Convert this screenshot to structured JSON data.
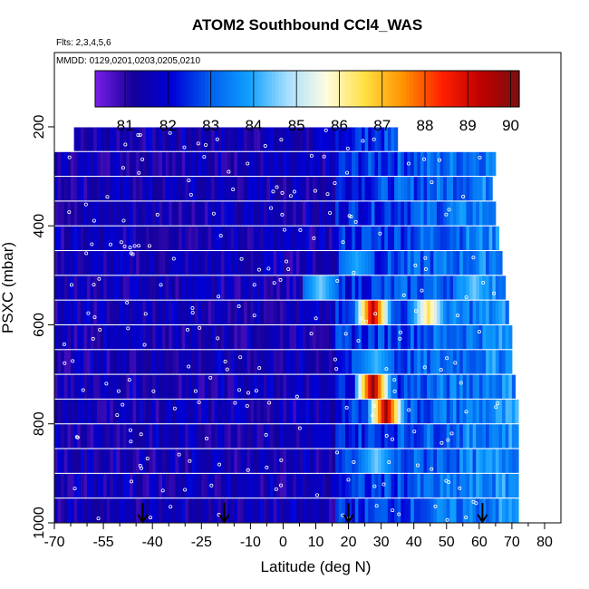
{
  "chart_data": {
    "type": "heatmap",
    "title": "ATOM2 Southbound CCl4_WAS",
    "subtitle_flights": "Flts: 2,3,4,5,6",
    "subtitle_dates": "MMDD: 0129,0201,0203,0205,0210",
    "xlabel": "Latitude (deg N)",
    "ylabel": "PSXC (mbar)",
    "xlim": [
      -70,
      85
    ],
    "ylim": [
      1000,
      50
    ],
    "x_ticks": [
      -70,
      -55,
      -40,
      -25,
      -10,
      0,
      10,
      20,
      30,
      40,
      50,
      60,
      70,
      80
    ],
    "x_minor_ticks": [
      -65,
      -60,
      -50,
      -45,
      -35,
      -30,
      -20,
      -15,
      -5,
      5,
      15,
      25,
      35,
      45,
      55,
      65,
      75
    ],
    "y_ticks": [
      200,
      400,
      600,
      800,
      1000
    ],
    "colorbar": {
      "ticks": [
        81,
        82,
        83,
        84,
        85,
        86,
        87,
        88,
        89,
        90
      ],
      "range": [
        80.3,
        90.2
      ],
      "colors": [
        "#7a1ee8",
        "#14009a",
        "#0000d8",
        "#0060f0",
        "#10a0ff",
        "#a8e0ff",
        "#fffce0",
        "#ffe040",
        "#ff9000",
        "#ff2000",
        "#c00000",
        "#7a1010"
      ]
    },
    "pressure_bins": [
      225,
      275,
      325,
      375,
      425,
      475,
      525,
      575,
      625,
      675,
      725,
      775,
      825,
      875,
      925,
      975
    ],
    "bin_lat_ranges": [
      [
        -64,
        35
      ],
      [
        -70,
        65
      ],
      [
        -70,
        64
      ],
      [
        -70,
        65
      ],
      [
        -70,
        66
      ],
      [
        -70,
        67
      ],
      [
        -70,
        68
      ],
      [
        -70,
        69
      ],
      [
        -70,
        70
      ],
      [
        -70,
        70
      ],
      [
        -70,
        71
      ],
      [
        -70,
        72
      ],
      [
        -70,
        72
      ],
      [
        -70,
        72
      ],
      [
        -70,
        72
      ],
      [
        -70,
        72
      ]
    ],
    "base_value": 81.5,
    "hotspots": [
      {
        "p": 575,
        "lat": 27,
        "value": 89.5
      },
      {
        "p": 575,
        "lat": 44,
        "value": 86.5
      },
      {
        "p": 525,
        "lat": 11,
        "value": 84.5
      },
      {
        "p": 525,
        "lat": 58,
        "value": 84.5
      },
      {
        "p": 725,
        "lat": 27,
        "value": 90.0
      },
      {
        "p": 775,
        "lat": 31,
        "value": 89.8
      },
      {
        "p": 675,
        "lat": 28,
        "value": 84.2
      },
      {
        "p": 875,
        "lat": 28,
        "value": 84.5
      },
      {
        "p": 475,
        "lat": 22,
        "value": 84.0
      }
    ],
    "arrows_lat": [
      -43,
      -18,
      20,
      61
    ],
    "grid": false,
    "legend": "colorbar-top"
  }
}
